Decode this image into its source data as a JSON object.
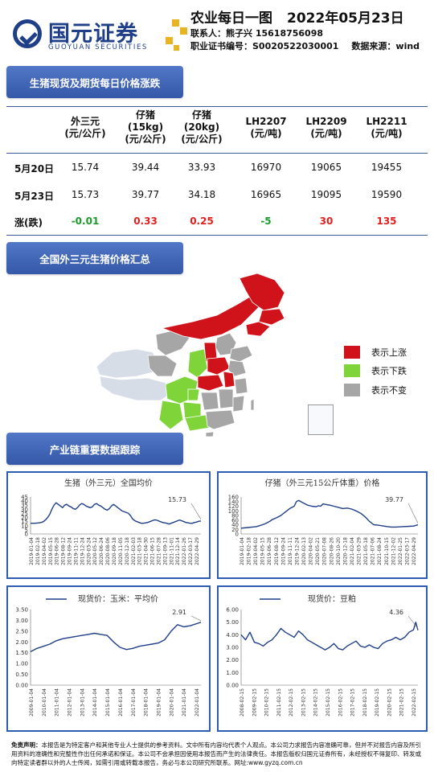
{
  "header": {
    "logo_cn": "国元证券",
    "logo_en": "GUOYUAN SECURITIES",
    "title": "农业每日一图",
    "date": "2022年05月23日",
    "contact": "联系人：熊子兴  15618756098",
    "cert": "职业证书编号：S0020522030001",
    "source": "数据来源：wind",
    "brand_color": "#1f3f88",
    "accent_color": "#e8b422"
  },
  "sections": {
    "prices": "生猪现货及期货每日价格涨跌",
    "map": "全国外三元生猪价格汇总",
    "chain": "产业链重要数据跟踪"
  },
  "table": {
    "headers": [
      [
        "外三元",
        "(元/公斤)"
      ],
      [
        "仔猪",
        "(15kg)",
        "(元/公斤)"
      ],
      [
        "仔猪",
        "(20kg)",
        "(元/公斤)"
      ],
      [
        "LH2207",
        "(元/吨)"
      ],
      [
        "LH2209",
        "(元/吨)"
      ],
      [
        "LH2211",
        "(元/吨)"
      ]
    ],
    "rows": [
      {
        "label": "5月20日",
        "values": [
          "15.74",
          "39.44",
          "33.93",
          "16970",
          "19065",
          "19455"
        ]
      },
      {
        "label": "5月23日",
        "values": [
          "15.73",
          "39.77",
          "34.18",
          "16965",
          "19095",
          "19590"
        ]
      }
    ],
    "change_label": "涨(跌)",
    "changes": [
      "-0.01",
      "0.33",
      "0.25",
      "-5",
      "30",
      "135"
    ],
    "change_dirs": [
      "down",
      "up",
      "up",
      "down",
      "up",
      "up"
    ]
  },
  "legend": [
    {
      "label": "表示上涨",
      "color": "#d0121b"
    },
    {
      "label": "表示下跌",
      "color": "#7fd43a"
    },
    {
      "label": "表示不变",
      "color": "#a6a6a6"
    }
  ],
  "chart_data": [
    {
      "type": "line",
      "title": "生猪（外三元）全国均价",
      "ylim": [
        0,
        45
      ],
      "yticks": [
        0,
        5,
        10,
        15,
        20,
        25,
        30,
        35,
        40,
        45
      ],
      "x_tick_labels": [
        "2019-01-04",
        "2019-02-18",
        "2019-04-02",
        "2019-05-15",
        "2019-06-28",
        "2019-08-12",
        "2019-09-24",
        "2019-11-11",
        "2019-12-24",
        "2020-03-24",
        "2020-05-12",
        "2020-06-24",
        "2020-08-06",
        "2020-09-18",
        "2020-11-05",
        "2020-12-18",
        "2021-02-03",
        "2021-03-18",
        "2021-04-30",
        "2021-06-15",
        "2021-07-28",
        "2021-09-13",
        "2021-11-01",
        "2021-12-14",
        "2022-01-26",
        "2022-03-17",
        "2022-04-29"
      ],
      "annotation": "15.73",
      "last_value": 15.73,
      "x": [
        0,
        2,
        4,
        5,
        6,
        7,
        8,
        9,
        10,
        11,
        12,
        13,
        14,
        15,
        16,
        17,
        18,
        19,
        20,
        21,
        22,
        23,
        24,
        25,
        26,
        27,
        28,
        29,
        30,
        31,
        32,
        33,
        34,
        35,
        36,
        37,
        38,
        39,
        40,
        41,
        42,
        43,
        44,
        45,
        46,
        47,
        48,
        49,
        50,
        51,
        52,
        53,
        54,
        55,
        56,
        57,
        58,
        59,
        60,
        61,
        62,
        63,
        64,
        65,
        66,
        67,
        68,
        69,
        70,
        71,
        72,
        73,
        74,
        75,
        76,
        77,
        78,
        79,
        80
      ],
      "values": [
        13,
        13,
        13.5,
        14,
        15,
        17,
        20,
        24,
        30,
        35,
        38,
        36,
        34,
        32,
        35,
        36,
        34,
        33,
        31,
        30,
        32,
        35,
        37,
        36,
        34,
        33,
        32,
        33,
        36,
        37,
        35,
        34,
        32,
        30,
        29,
        31,
        34,
        36,
        34,
        32,
        30,
        28,
        27,
        26,
        25,
        22,
        18,
        16,
        15,
        14,
        13,
        13,
        13.5,
        14,
        15,
        16,
        17,
        17,
        16,
        15,
        14,
        13.5,
        13,
        12,
        13,
        14,
        15,
        16,
        17,
        16,
        15,
        14,
        13.5,
        13,
        13,
        14,
        14.5,
        15.5,
        15.73
      ]
    },
    {
      "type": "line",
      "title": "仔猪（外三元15公斤体重）价格",
      "ylim": [
        0,
        160
      ],
      "yticks": [
        0,
        20,
        40,
        60,
        80,
        100,
        120,
        140,
        160
      ],
      "x_tick_labels": [
        "2019-01-04",
        "2019-02-18",
        "2019-04-02",
        "2019-05-15",
        "2019-06-28",
        "2019-08-12",
        "2019-09-24",
        "2019-11-11",
        "2019-12-24",
        "2020-02-13",
        "2020-04-02",
        "2020-05-21",
        "2020-07-08",
        "2020-08-26",
        "2020-10-20",
        "2020-12-18",
        "2021-02-04",
        "2021-03-29",
        "2021-05-18",
        "2021-07-06",
        "2021-08-24",
        "2021-10-15",
        "2021-12-02",
        "2022-01-25",
        "2022-03-17",
        "2022-04-29"
      ],
      "annotation": "39.77",
      "last_value": 39.77,
      "x": [
        0,
        3,
        5,
        7,
        9,
        11,
        13,
        14,
        16,
        18,
        20,
        22,
        24,
        25,
        26,
        28,
        30,
        32,
        34,
        35,
        36,
        37,
        38,
        40,
        42,
        44,
        46,
        48,
        50,
        52,
        54,
        56,
        58,
        60,
        62,
        64,
        66,
        68,
        70,
        72,
        74,
        76,
        78,
        80
      ],
      "values": [
        25,
        28,
        30,
        32,
        38,
        45,
        55,
        62,
        70,
        80,
        95,
        110,
        120,
        140,
        145,
        135,
        125,
        120,
        118,
        122,
        120,
        130,
        128,
        125,
        120,
        115,
        110,
        112,
        108,
        100,
        90,
        75,
        55,
        40,
        38,
        35,
        32,
        30,
        30,
        31,
        32,
        33,
        34,
        39.77
      ]
    },
    {
      "type": "line",
      "title": "现货价：玉米：平均价",
      "ylim": [
        0.0,
        3.5
      ],
      "yticks": [
        "0.00",
        "0.50",
        "1.00",
        "1.50",
        "2.00",
        "2.50",
        "3.00",
        "3.50"
      ],
      "x_tick_labels": [
        "2009-01-04",
        "2010-01-04",
        "2011-01-04",
        "2012-01-04",
        "2013-01-04",
        "2014-01-04",
        "2015-01-04",
        "2016-01-04",
        "2017-01-04",
        "2018-01-04",
        "2019-01-04",
        "2020-01-04",
        "2021-01-04",
        "2022-01-04"
      ],
      "annotation": "2.91",
      "last_value": 2.91,
      "x": [
        0,
        3,
        6,
        9,
        12,
        15,
        18,
        21,
        24,
        27,
        30,
        33,
        36,
        39,
        42,
        45,
        48,
        51,
        54,
        57,
        60,
        63,
        66,
        69,
        72,
        75,
        78,
        80
      ],
      "values": [
        1.55,
        1.7,
        1.8,
        1.9,
        2.05,
        2.15,
        2.2,
        2.25,
        2.3,
        2.35,
        2.4,
        2.35,
        2.3,
        2.0,
        1.75,
        1.65,
        1.7,
        1.8,
        1.85,
        1.9,
        1.95,
        2.1,
        2.5,
        2.8,
        2.7,
        2.75,
        2.85,
        2.91
      ]
    },
    {
      "type": "line",
      "title": "现货价：豆粕",
      "ylim": [
        0.0,
        6.0
      ],
      "yticks": [
        "0.00",
        "1.00",
        "2.00",
        "3.00",
        "4.00",
        "5.00",
        "6.00"
      ],
      "x_tick_labels": [
        "2008-02-15",
        "2009-02-15",
        "2010-02-15",
        "2011-02-15",
        "2012-02-15",
        "2013-02-15",
        "2014-02-15",
        "2015-02-15",
        "2016-02-15",
        "2017-02-15",
        "2018-02-15",
        "2019-02-15",
        "2020-02-15",
        "2021-02-15",
        "2022-02-15"
      ],
      "annotation": "4.36",
      "last_value": 4.36,
      "x": [
        0,
        2,
        4,
        6,
        8,
        10,
        12,
        14,
        16,
        18,
        20,
        22,
        24,
        26,
        28,
        30,
        32,
        34,
        36,
        38,
        40,
        42,
        44,
        46,
        48,
        50,
        52,
        54,
        56,
        58,
        60,
        62,
        64,
        66,
        68,
        70,
        72,
        74,
        76,
        78,
        79,
        80
      ],
      "values": [
        4.0,
        3.6,
        4.2,
        3.4,
        3.3,
        3.1,
        3.4,
        3.6,
        4.0,
        4.5,
        4.2,
        4.0,
        3.8,
        4.3,
        4.0,
        3.6,
        3.4,
        3.2,
        3.0,
        2.8,
        3.0,
        3.3,
        2.9,
        2.8,
        3.1,
        3.3,
        3.5,
        3.1,
        3.0,
        3.2,
        3.0,
        2.9,
        3.3,
        3.5,
        3.6,
        3.8,
        3.6,
        3.8,
        4.2,
        4.4,
        5.0,
        4.36
      ]
    }
  ],
  "disclaimer": {
    "label": "免责声明：",
    "text": "本报告是为特定客户和其他专业人士提供的参考资料。文中所有内容均代表个人观点。本公司力求报告内容准确可靠，但并不对报告内容及所引用资料的准确性和完整性作出任何承诺和保证。本公司不会承担因使用本报告而产生的法律责任。本报告版权归国元证券所有，未经授权不得复印、转发或向特定读者群以外的人士传阅，如需引用或转载本报告，务必与本公司研究所联系。网址:www.gyzq.com.cn"
  }
}
